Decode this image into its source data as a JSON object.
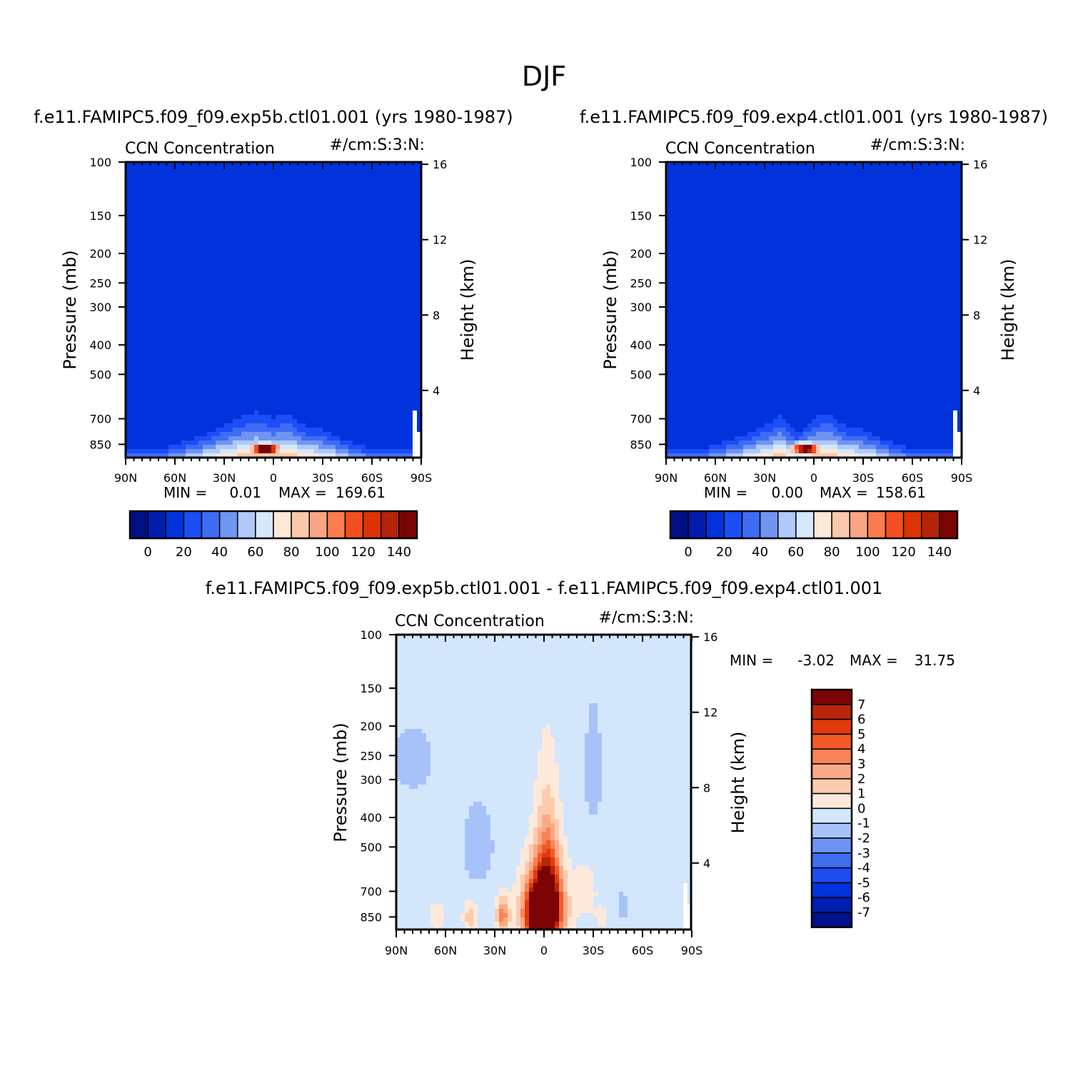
{
  "title": "DJF",
  "palette": {
    "abs": [
      "#000f85",
      "#001dad",
      "#0033dc",
      "#1c4df7",
      "#3f6cf5",
      "#6f94f2",
      "#b0c9fa",
      "#d6e8fc",
      "#fde8d8",
      "#fbc8ac",
      "#f9a583",
      "#fa7c4f",
      "#f44e21",
      "#dc3407",
      "#b6230b",
      "#7a0404"
    ],
    "diff": [
      "#00118a",
      "#001fb0",
      "#0232dc",
      "#1b4df2",
      "#3e6ef2",
      "#6c93f2",
      "#a6c2f8",
      "#d3e6fc",
      "#fde9da",
      "#fccbae",
      "#fbaa86",
      "#f98357",
      "#f35a27",
      "#e23a0c",
      "#b9250a",
      "#7d0404"
    ]
  },
  "chart_data": [
    {
      "type": "heatmap",
      "panel": "top-left",
      "heading": "f.e11.FAMIPC5.f09_f09.exp5b.ctl01.001 (yrs 1980-1987)",
      "title_left": "CCN Concentration",
      "title_right": "#/cm:S:3:N:",
      "ylabel": "Pressure (mb)",
      "ylabel_right": "Height (km)",
      "x_ticks": [
        "90N",
        "60N",
        "30N",
        "0",
        "30S",
        "60S",
        "90S"
      ],
      "y_ticks": [
        "100",
        "150",
        "200",
        "250",
        "300",
        "400",
        "500",
        "700",
        "850"
      ],
      "y_ticks_right": [
        "16",
        "12",
        "8",
        "4"
      ],
      "stats": {
        "min_label": "MIN =",
        "min": "0.01",
        "max_label": "MAX =",
        "max": "169.61"
      },
      "colorbar_labels": [
        "0",
        "20",
        "40",
        "60",
        "80",
        "100",
        "120",
        "140"
      ],
      "x_range": [
        90,
        -90
      ],
      "y_range_mb": [
        100,
        940
      ],
      "field": {
        "levels": [
          -10,
          0,
          10,
          20,
          30,
          40,
          50,
          60,
          70,
          80,
          90,
          100,
          110,
          120,
          130,
          140
        ],
        "ridge": [
          [
            -60,
            -60
          ],
          [
            -30,
            -25
          ],
          [
            -20,
            -22
          ],
          [
            -10,
            -8
          ],
          [
            0,
            -12
          ],
          [
            10,
            -8
          ],
          [
            20,
            -12
          ],
          [
            30,
            -20
          ],
          [
            50,
            -40
          ],
          [
            70,
            -60
          ]
        ],
        "sources": [
          [
            5,
            880,
            165,
            10,
            40
          ]
        ]
      }
    },
    {
      "type": "heatmap",
      "panel": "top-right",
      "heading": "f.e11.FAMIPC5.f09_f09.exp4.ctl01.001 (yrs 1980-1987)",
      "title_left": "CCN Concentration",
      "title_right": "#/cm:S:3:N:",
      "ylabel": "Pressure (mb)",
      "ylabel_right": "Height (km)",
      "x_ticks": [
        "90N",
        "60N",
        "30N",
        "0",
        "30S",
        "60S",
        "90S"
      ],
      "y_ticks": [
        "100",
        "150",
        "200",
        "250",
        "300",
        "400",
        "500",
        "700",
        "850"
      ],
      "y_ticks_right": [
        "16",
        "12",
        "8",
        "4"
      ],
      "stats": {
        "min_label": "MIN =",
        "min": "0.00",
        "max_label": "MAX =",
        "max": "158.61"
      },
      "colorbar_labels": [
        "0",
        "20",
        "40",
        "60",
        "80",
        "100",
        "120",
        "140"
      ],
      "x_range": [
        90,
        -90
      ],
      "y_range_mb": [
        100,
        940
      ],
      "field": {
        "levels": [
          -10,
          0,
          10,
          20,
          30,
          40,
          50,
          60,
          70,
          80,
          90,
          100,
          110,
          120,
          130,
          140
        ],
        "ridge": [
          [
            -60,
            -60
          ],
          [
            -30,
            -25
          ],
          [
            -20,
            -22
          ],
          [
            -10,
            -8
          ],
          [
            0,
            -12
          ],
          [
            10,
            -30
          ],
          [
            20,
            -10
          ],
          [
            30,
            -20
          ],
          [
            50,
            -40
          ],
          [
            70,
            -60
          ]
        ],
        "sources": [
          [
            5,
            880,
            155,
            10,
            40
          ]
        ]
      }
    },
    {
      "type": "heatmap",
      "panel": "bottom",
      "heading": "f.e11.FAMIPC5.f09_f09.exp5b.ctl01.001 - f.e11.FAMIPC5.f09_f09.exp4.ctl01.001",
      "title_left": "CCN Concentration",
      "title_right": "#/cm:S:3:N:",
      "ylabel": "Pressure (mb)",
      "ylabel_right": "Height (km)",
      "x_ticks": [
        "90N",
        "60N",
        "30N",
        "0",
        "30S",
        "60S",
        "90S"
      ],
      "y_ticks": [
        "100",
        "150",
        "200",
        "250",
        "300",
        "400",
        "500",
        "700",
        "850"
      ],
      "y_ticks_right": [
        "16",
        "12",
        "8",
        "4"
      ],
      "stats": {
        "min_label": "MIN =",
        "min": "-3.02",
        "max_label": "MAX =",
        "max": "31.75"
      },
      "colorbar_labels": [
        "7",
        "6",
        "5",
        "4",
        "3",
        "2",
        "1",
        "0",
        "-1",
        "-2",
        "-3",
        "-4",
        "-5",
        "-6",
        "-7"
      ],
      "x_range": [
        90,
        -90
      ],
      "y_range_mb": [
        100,
        940
      ],
      "field": {
        "levels": [
          -7,
          -6,
          -5,
          -4,
          -3,
          -2,
          -1,
          0,
          1,
          2,
          3,
          4,
          5,
          6,
          7
        ],
        "background": -0.5,
        "sources": [
          [
            0,
            800,
            11,
            11,
            220
          ],
          [
            -2,
            600,
            4,
            7,
            280
          ],
          [
            2,
            850,
            6,
            8,
            140
          ],
          [
            25,
            840,
            4,
            4,
            110
          ],
          [
            45,
            850,
            2,
            4,
            90
          ],
          [
            65,
            850,
            1.2,
            5,
            90
          ],
          [
            -25,
            700,
            1.5,
            6,
            120
          ],
          [
            -35,
            850,
            1,
            4,
            70
          ],
          [
            -48,
            780,
            -1.2,
            3,
            80
          ],
          [
            40,
            500,
            -1.3,
            9,
            150
          ],
          [
            -30,
            280,
            -1.3,
            5,
            120
          ],
          [
            80,
            260,
            -1.3,
            12,
            60
          ]
        ]
      }
    }
  ]
}
